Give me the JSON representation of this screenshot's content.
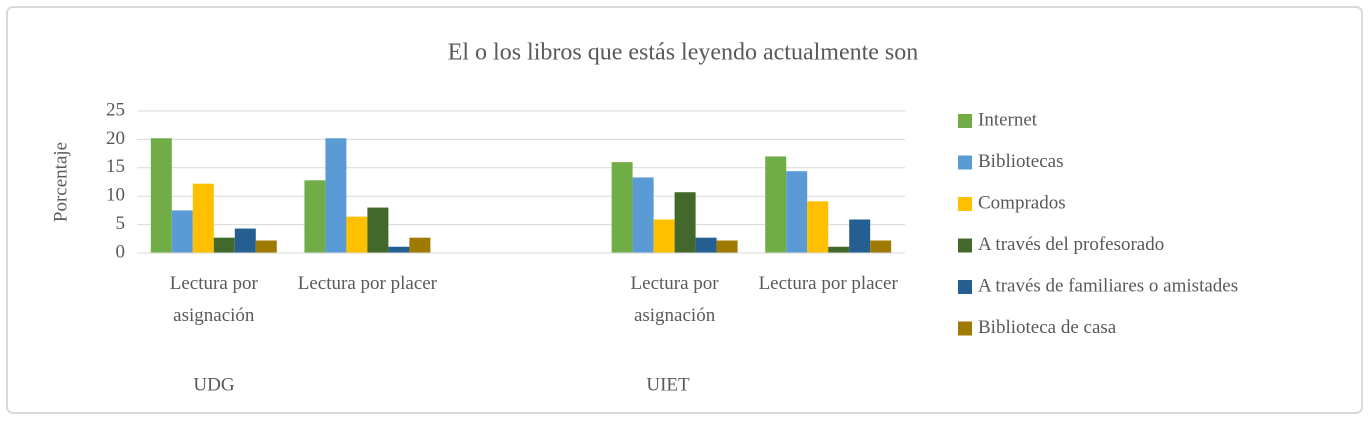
{
  "chart_data": {
    "type": "bar",
    "title": "El o los libros que estás leyendo actualmente son",
    "y_label": "Porcentaje",
    "categories": [
      "Lectura por asignación",
      "Lectura por placer",
      null,
      "Lectura por asignación",
      "Lectura por placer"
    ],
    "groups": [
      "UDG",
      "UIET"
    ],
    "series": [
      {
        "name": "Internet",
        "color": "#70ad47",
        "values": [
          20.2,
          12.8,
          null,
          16.0,
          17.0
        ]
      },
      {
        "name": "Bibliotecas",
        "color": "#5b9bd5",
        "values": [
          7.5,
          20.2,
          null,
          13.3,
          14.4
        ]
      },
      {
        "name": "Comprados",
        "color": "#ffc000",
        "values": [
          12.2,
          6.4,
          null,
          5.9,
          9.1
        ]
      },
      {
        "name": "A través del profesorado",
        "color": "#43682b",
        "values": [
          2.7,
          8.0,
          null,
          10.7,
          1.1
        ]
      },
      {
        "name": "A través de familiares o amistades",
        "color": "#255e91",
        "values": [
          4.3,
          1.1,
          null,
          2.7,
          5.9
        ]
      },
      {
        "name": "Biblioteca de casa",
        "color": "#9e7a00",
        "values": [
          2.2,
          2.7,
          null,
          2.2,
          2.2
        ]
      }
    ],
    "ylim": [
      0,
      25
    ],
    "yticks": [
      0,
      5,
      10,
      15,
      20,
      25
    ],
    "grid": true,
    "legend": "right"
  }
}
